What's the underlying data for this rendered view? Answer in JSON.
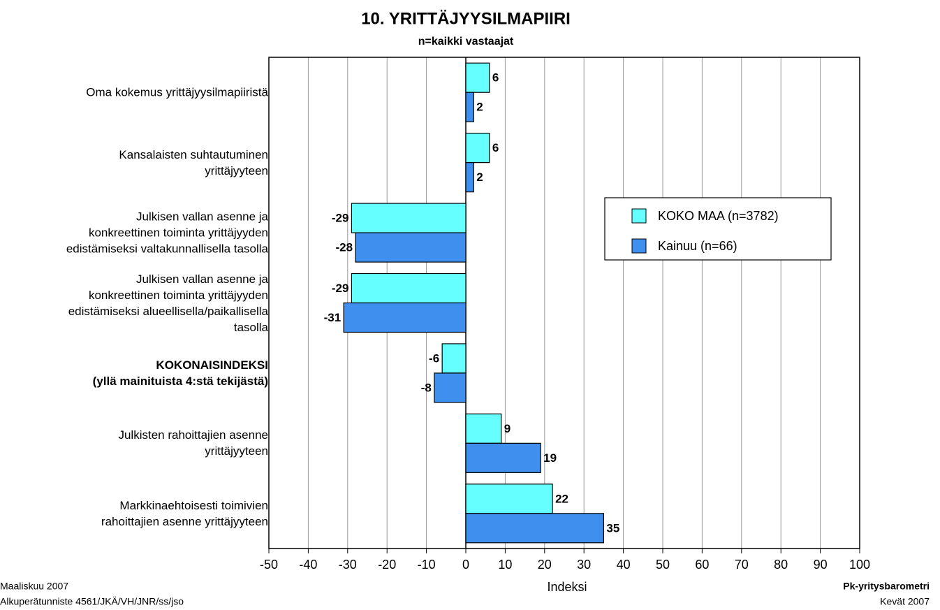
{
  "chart_data": {
    "type": "hbar",
    "title": "10. YRITTÄJYYSILMAPIIRI",
    "subtitle": "n=kaikki vastaajat",
    "x_label": "Indeksi",
    "categories": [
      "Oma kokemus yrittäjyysilmapiiristä",
      "Kansalaisten suhtautuminen\nyrittäjyyteen",
      "Julkisen vallan asenne ja\nkonkreettinen toiminta yrittäjyyden\nedistämiseksi valtakunnallisella tasolla",
      "Julkisen vallan asenne ja\nkonkreettinen toiminta yrittäjyyden\nedistämiseksi alueellisella/paikallisella\ntasolla",
      "KOKONAISINDEKSI\n(yllä mainituista 4:stä tekijästä)",
      "Julkisten rahoittajien asenne\nyrittäjyyteen",
      "Markkinaehtoisesti toimivien\nrahoittajien asenne yrittäjyyteen"
    ],
    "series": [
      {
        "name": "KOKO MAA (n=3782)",
        "color": "#66ffff",
        "values": [
          6,
          6,
          -29,
          -29,
          -6,
          9,
          22
        ]
      },
      {
        "name": "Kainuu (n=66)",
        "color": "#3f8fef",
        "values": [
          2,
          2,
          -28,
          -31,
          -8,
          19,
          35
        ]
      }
    ],
    "xlim": [
      -50,
      100
    ],
    "xticks": [
      -50,
      -40,
      -30,
      -20,
      -10,
      0,
      10,
      20,
      30,
      40,
      50,
      60,
      70,
      80,
      90,
      100
    ],
    "grid": true,
    "legend": "right",
    "footer_left": [
      "Maaliskuu 2007",
      "Alkuperätunniste 4561/JKÄ/VH/JNR/ss/jso"
    ],
    "footer_right": [
      "Pk-yritysbarometri",
      "Kevät 2007"
    ]
  }
}
